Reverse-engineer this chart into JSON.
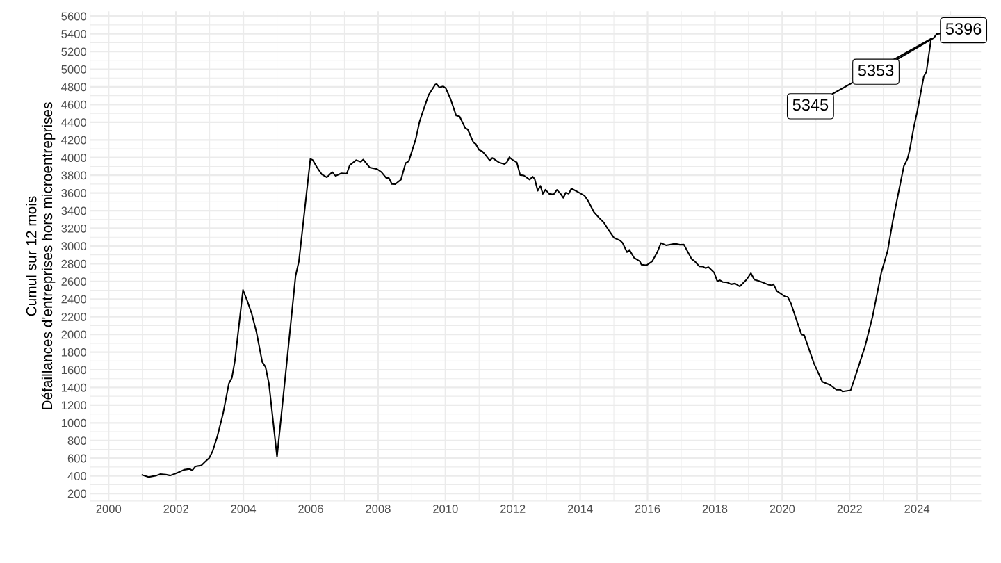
{
  "chart_data": {
    "type": "line",
    "ylabel": "Cumul sur 12 mois\nDéfaillances d'entreprises hors microentreprises",
    "x": [
      2001.0,
      2001.19,
      2001.42,
      2001.53,
      2001.7,
      2001.83,
      2002.04,
      2002.24,
      2002.41,
      2002.48,
      2002.58,
      2002.75,
      2002.86,
      2002.99,
      2003.09,
      2003.23,
      2003.4,
      2003.57,
      2003.66,
      2003.75,
      2003.99,
      2004.12,
      2004.25,
      2004.39,
      2004.56,
      2004.66,
      2004.76,
      2005.0,
      2005.31,
      2005.55,
      2005.65,
      2005.99,
      2006.06,
      2006.19,
      2006.33,
      2006.48,
      2006.64,
      2006.74,
      2006.91,
      2007.07,
      2007.16,
      2007.35,
      2007.49,
      2007.56,
      2007.75,
      2007.97,
      2008.1,
      2008.24,
      2008.32,
      2008.41,
      2008.51,
      2008.68,
      2008.82,
      2008.91,
      2009.12,
      2009.23,
      2009.33,
      2009.5,
      2009.7,
      2009.74,
      2009.82,
      2009.93,
      2010.01,
      2010.15,
      2010.32,
      2010.42,
      2010.59,
      2010.66,
      2010.83,
      2010.9,
      2011.0,
      2011.1,
      2011.18,
      2011.32,
      2011.39,
      2011.58,
      2011.75,
      2011.82,
      2011.9,
      2011.98,
      2012.12,
      2012.22,
      2012.33,
      2012.5,
      2012.59,
      2012.65,
      2012.74,
      2012.82,
      2012.89,
      2012.97,
      2013.08,
      2013.21,
      2013.31,
      2013.42,
      2013.5,
      2013.57,
      2013.66,
      2013.74,
      2013.93,
      2014.13,
      2014.24,
      2014.41,
      2014.58,
      2014.7,
      2014.85,
      2015.0,
      2015.19,
      2015.26,
      2015.39,
      2015.46,
      2015.6,
      2015.77,
      2015.82,
      2015.97,
      2016.14,
      2016.29,
      2016.4,
      2016.55,
      2016.82,
      2016.96,
      2017.08,
      2017.31,
      2017.4,
      2017.54,
      2017.64,
      2017.72,
      2017.81,
      2017.98,
      2018.07,
      2018.15,
      2018.24,
      2018.37,
      2018.48,
      2018.6,
      2018.74,
      2018.94,
      2019.07,
      2019.17,
      2019.34,
      2019.58,
      2019.69,
      2019.74,
      2019.84,
      2019.99,
      2020.09,
      2020.16,
      2020.26,
      2020.43,
      2020.57,
      2020.65,
      2020.94,
      2021.19,
      2021.42,
      2021.61,
      2021.72,
      2021.79,
      2022.03,
      2022.2,
      2022.46,
      2022.68,
      2022.76,
      2022.94,
      2023.13,
      2023.28,
      2023.61,
      2023.72,
      2023.79,
      2023.9,
      2024.01,
      2024.2,
      2024.28,
      2024.42,
      2024.5,
      2024.58
    ],
    "series": [
      {
        "color": "#000000",
        "values": [
          410,
          388,
          404,
          420,
          415,
          404,
          435,
          469,
          479,
          461,
          508,
          518,
          559,
          603,
          681,
          849,
          1108,
          1444,
          1509,
          1703,
          2504,
          2375,
          2233,
          2025,
          1689,
          1630,
          1444,
          616,
          1758,
          2659,
          2828,
          3984,
          3973,
          3888,
          3810,
          3777,
          3836,
          3792,
          3823,
          3818,
          3914,
          3971,
          3953,
          3978,
          3888,
          3870,
          3836,
          3771,
          3771,
          3701,
          3699,
          3751,
          3940,
          3958,
          4211,
          4405,
          4521,
          4708,
          4827,
          4832,
          4793,
          4806,
          4785,
          4664,
          4475,
          4465,
          4333,
          4320,
          4172,
          4154,
          4087,
          4069,
          4035,
          3965,
          3996,
          3947,
          3926,
          3945,
          4004,
          3978,
          3945,
          3802,
          3797,
          3751,
          3784,
          3758,
          3624,
          3681,
          3590,
          3637,
          3590,
          3583,
          3635,
          3590,
          3544,
          3603,
          3590,
          3650,
          3611,
          3569,
          3507,
          3383,
          3311,
          3267,
          3177,
          3094,
          3060,
          3034,
          2931,
          2957,
          2867,
          2828,
          2789,
          2783,
          2828,
          2931,
          3034,
          3008,
          3026,
          3014,
          3016,
          2853,
          2828,
          2770,
          2768,
          2750,
          2762,
          2698,
          2603,
          2613,
          2592,
          2589,
          2568,
          2576,
          2543,
          2620,
          2693,
          2620,
          2600,
          2564,
          2556,
          2568,
          2491,
          2452,
          2426,
          2426,
          2349,
          2155,
          2000,
          1992,
          1674,
          1464,
          1429,
          1374,
          1376,
          1354,
          1368,
          1562,
          1867,
          2199,
          2352,
          2698,
          2947,
          3280,
          3904,
          3987,
          4098,
          4333,
          4527,
          4915,
          4971,
          5345,
          5353,
          5396
        ]
      }
    ],
    "annotations": [
      {
        "text": "5345",
        "x": 2024.42,
        "y": 5345
      },
      {
        "text": "5353",
        "x": 2024.5,
        "y": 5353
      },
      {
        "text": "5396",
        "x": 2024.58,
        "y": 5396
      }
    ],
    "xlim": [
      1999.45,
      2025.9
    ],
    "xticks": [
      2000,
      2002,
      2004,
      2006,
      2008,
      2010,
      2012,
      2014,
      2016,
      2018,
      2020,
      2022,
      2024
    ],
    "ylim": [
      115,
      5655
    ],
    "yticks": [
      200,
      400,
      600,
      800,
      1000,
      1200,
      1400,
      1600,
      1800,
      2000,
      2200,
      2400,
      2600,
      2800,
      3000,
      3200,
      3400,
      3600,
      3800,
      4000,
      4200,
      4400,
      4600,
      4800,
      5000,
      5200,
      5400,
      5600
    ],
    "grid": true
  }
}
